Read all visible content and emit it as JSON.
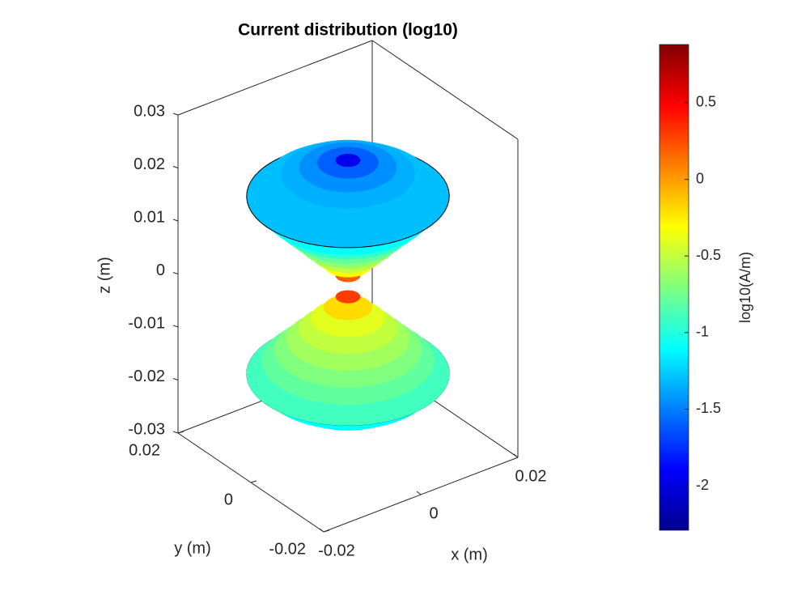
{
  "chart_data": {
    "type": "surface3d",
    "title": "Current distribution (log10)",
    "xlabel": "x (m)",
    "ylabel": "y (m)",
    "zlabel": "z (m)",
    "xlim": [
      -0.02,
      0.02
    ],
    "ylim": [
      -0.02,
      0.02
    ],
    "zlim": [
      -0.03,
      0.03
    ],
    "xticks": [
      -0.02,
      0,
      0.02
    ],
    "yticks": [
      -0.02,
      0,
      0.02
    ],
    "zticks": [
      -0.03,
      -0.02,
      -0.01,
      0,
      0.01,
      0.02,
      0.03
    ],
    "colormap": "jet",
    "colorbar": {
      "label": "log10(A/m)",
      "clim": [
        -2.29,
        0.88
      ],
      "ticks": [
        -2,
        -1.5,
        -1,
        -0.5,
        0,
        0.5
      ]
    },
    "surfaces": [
      {
        "z": [
          -0.02348,
          -0.02339,
          -0.02294,
          -0.02207,
          -0.02074,
          -0.01885,
          -0.0165
        ],
        "radius": [
          0,
          0.002,
          0.005,
          0.008,
          0.011,
          0.014,
          0.0167
        ],
        "values": [
          -1.3,
          -1.3,
          -1.3,
          -1.25,
          -1.2,
          -1.1,
          -0.9
        ]
      },
      {
        "z": [
          -0.0165,
          -0.014,
          -0.012,
          -0.01,
          -0.008,
          -0.006,
          -0.004,
          -0.002,
          0
        ],
        "radius": [
          0.0167,
          0.0142,
          0.0121,
          0.0101,
          0.0081,
          0.0061,
          0.004,
          0.002,
          0
        ],
        "values": [
          -0.9,
          -0.8,
          -0.7,
          -0.6,
          -0.5,
          -0.4,
          -0.2,
          0.3,
          0.7
        ]
      },
      {
        "z": [
          0,
          0.002,
          0.004,
          0.006,
          0.008,
          0.01,
          0.012,
          0.014,
          0.017
        ],
        "radius": [
          0,
          0.002,
          0.0039,
          0.0059,
          0.0079,
          0.0098,
          0.0118,
          0.0138,
          0.0167
        ],
        "values": [
          0.85,
          0.2,
          -0.3,
          -0.5,
          -0.65,
          -0.8,
          -0.95,
          -1.1,
          -1.3
        ]
      },
      {
        "z": [
          0.017,
          0.01926,
          0.02112,
          0.02243,
          0.02328,
          0.02373,
          0.0238
        ],
        "radius": [
          0.0167,
          0.014,
          0.011,
          0.008,
          0.005,
          0.002,
          0
        ],
        "values": [
          -1.3,
          -1.3,
          -1.35,
          -1.45,
          -1.6,
          -1.95,
          -2.15
        ]
      }
    ]
  }
}
